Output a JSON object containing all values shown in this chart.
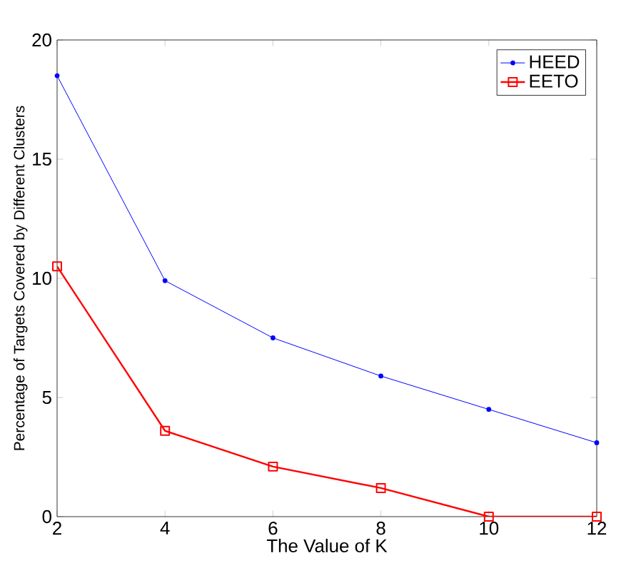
{
  "chart_data": {
    "type": "line",
    "xlabel": "The Value of K",
    "ylabel": "Percentage of Targets Covered by Different Clusters",
    "x": [
      2,
      4,
      6,
      8,
      10,
      12
    ],
    "series": [
      {
        "name": "HEED",
        "color": "#0000ff",
        "marker": "circle",
        "values": [
          18.5,
          9.9,
          7.5,
          5.9,
          4.5,
          3.1
        ]
      },
      {
        "name": "EETO",
        "color": "#ff0000",
        "marker": "square",
        "values": [
          10.5,
          3.6,
          2.1,
          1.2,
          0,
          0
        ]
      }
    ],
    "xlim": [
      2,
      12
    ],
    "ylim": [
      0,
      20
    ],
    "xticks": [
      2,
      4,
      6,
      8,
      10,
      12
    ],
    "yticks": [
      0,
      5,
      10,
      15,
      20
    ],
    "grid": false,
    "legend": "top right"
  }
}
